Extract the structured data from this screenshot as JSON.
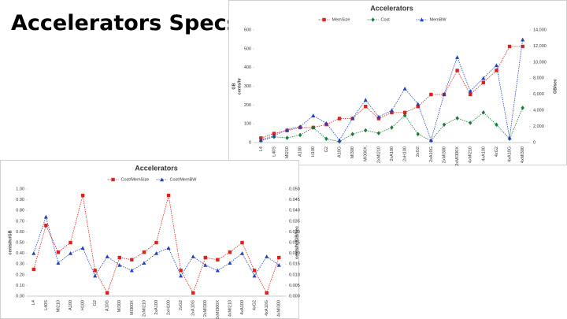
{
  "title": "Accelerators Specs",
  "chart_data": [
    {
      "type": "line",
      "title": "Accelerators",
      "categories": [
        "L4",
        "L40S",
        "MI210",
        "A100",
        "H100",
        "G2",
        "A10G",
        "MI300",
        "MI300X",
        "2xMI210",
        "2xA100",
        "2xH100",
        "2xG2",
        "2xA10G",
        "2xMI300",
        "2xMI300X",
        "4xMI210",
        "4xA100",
        "4xG2",
        "4xA10G",
        "4xMI300"
      ],
      "ylabel": [
        "GB",
        "cents/hr"
      ],
      "y2label": "GB/sec",
      "ylim": [
        0,
        600
      ],
      "yticks": [
        0,
        100,
        200,
        300,
        400,
        500,
        600
      ],
      "y2lim": [
        0,
        14000
      ],
      "y2ticks": [
        0,
        {
          "value": 2000,
          "label": "2,000"
        },
        {
          "value": 4000,
          "label": "4,000"
        },
        {
          "value": 6000,
          "label": "6,000"
        },
        {
          "value": 8000,
          "label": "8,000"
        },
        {
          "value": 10000,
          "label": "10,000"
        },
        {
          "value": 12000,
          "label": "12,000"
        },
        {
          "value": 14000,
          "label": "14,000"
        }
      ],
      "legend": "top",
      "series": [
        {
          "name": "MemSize",
          "color": "#e0201b",
          "marker": "square",
          "values": [
            24,
            48,
            64,
            80,
            80,
            96,
            128,
            128,
            192,
            128,
            160,
            160,
            192,
            256,
            256,
            384,
            256,
            320,
            384,
            512,
            512
          ]
        },
        {
          "name": "Cost",
          "color": "#1e7a3c",
          "marker": "diamond",
          "values": [
            10,
            30,
            25,
            40,
            80,
            20,
            5,
            45,
            65,
            50,
            80,
            145,
            45,
            10,
            95,
            130,
            105,
            160,
            95,
            20,
            185
          ]
        },
        {
          "name": "MemBW",
          "color": "#2040c0",
          "marker": "triangle",
          "axis": "y2",
          "values": [
            300,
            864,
            1600,
            2000,
            3350,
            2400,
            300,
            3000,
            5300,
            3200,
            4000,
            6700,
            4800,
            300,
            6000,
            10600,
            6400,
            8000,
            9600,
            600,
            12800
          ]
        }
      ]
    },
    {
      "type": "line",
      "title": "Accelerators",
      "categories": [
        "L4",
        "L40S",
        "MI210",
        "A100",
        "H100",
        "G2",
        "A10G",
        "MI300",
        "MI300X",
        "2xMI210",
        "2xA100",
        "2xH100",
        "2xG2",
        "2xA10G",
        "2xMI300",
        "2xMI300X",
        "4xMI210",
        "4xA100",
        "4xG2",
        "4xA10G",
        "4xMI300"
      ],
      "ylabel": [
        "cents/hr/GB"
      ],
      "y2label": "cents/hr/GB/sec",
      "ylim": [
        0,
        1
      ],
      "yticks": [
        {
          "value": 0,
          "label": "0.00"
        },
        {
          "value": 0.1,
          "label": "0.10"
        },
        {
          "value": 0.2,
          "label": "0.20"
        },
        {
          "value": 0.3,
          "label": "0.30"
        },
        {
          "value": 0.4,
          "label": "0.40"
        },
        {
          "value": 0.5,
          "label": "0.50"
        },
        {
          "value": 0.6,
          "label": "0.60"
        },
        {
          "value": 0.7,
          "label": "0.70"
        },
        {
          "value": 0.8,
          "label": "0.80"
        },
        {
          "value": 0.9,
          "label": "0.90"
        },
        {
          "value": 1,
          "label": "1.00"
        }
      ],
      "y2lim": [
        0,
        0.05
      ],
      "y2ticks": [
        {
          "value": 0,
          "label": "0.000"
        },
        0.005,
        {
          "value": 0.01,
          "label": "0.010"
        },
        0.015,
        {
          "value": 0.02,
          "label": "0.020"
        },
        0.025,
        {
          "value": 0.03,
          "label": "0.030"
        },
        0.035,
        {
          "value": 0.04,
          "label": "0.040"
        },
        0.045,
        {
          "value": 0.05,
          "label": "0.050"
        }
      ],
      "legend": "top",
      "series": [
        {
          "name": "Cost/MemSize",
          "color": "#e0201b",
          "marker": "square",
          "values": [
            0.25,
            0.66,
            0.41,
            0.5,
            0.94,
            0.24,
            0.03,
            0.36,
            0.34,
            0.41,
            0.5,
            0.94,
            0.24,
            0.03,
            0.36,
            0.34,
            0.41,
            0.5,
            0.24,
            0.03,
            0.36
          ]
        },
        {
          "name": "Cost/MemBW",
          "color": "#2040c0",
          "marker": "triangle",
          "axis": "y2",
          "values": [
            0.02,
            0.037,
            0.0155,
            0.02,
            0.0225,
            0.0095,
            0.0185,
            0.0145,
            0.012,
            0.0155,
            0.02,
            0.0225,
            0.0095,
            0.0185,
            0.0145,
            0.012,
            0.0155,
            0.02,
            0.0095,
            0.0185,
            0.0145
          ]
        }
      ]
    }
  ]
}
